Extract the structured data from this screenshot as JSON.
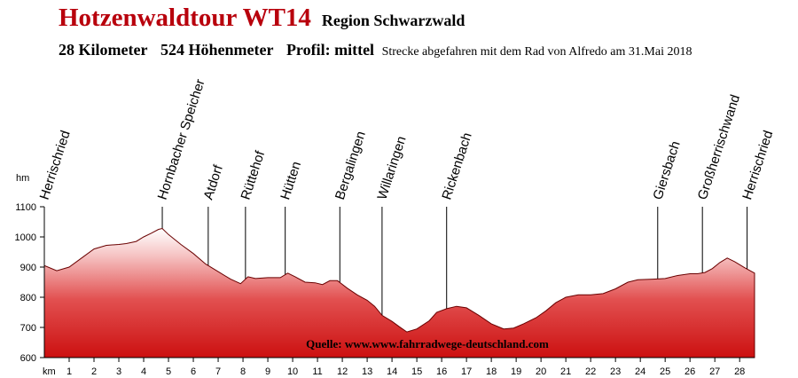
{
  "header": {
    "title": "Hotzenwaldtour WT14",
    "region": "Region Schwarzwald",
    "distance": "28 Kilometer",
    "elevation_gain": "524 Höhenmeter",
    "profile": "Profil: mittel",
    "note": "Strecke abgefahren mit dem Rad von Alfredo am 31.Mai 2018"
  },
  "chart_data": {
    "type": "area",
    "title": "Hotzenwaldtour WT14",
    "xlabel": "km",
    "ylabel": "hm",
    "xlim": [
      0,
      28.6
    ],
    "ylim": [
      600,
      1100
    ],
    "x_ticks": [
      1,
      2,
      3,
      4,
      5,
      6,
      7,
      8,
      9,
      10,
      11,
      12,
      13,
      14,
      15,
      16,
      17,
      18,
      19,
      20,
      21,
      22,
      23,
      24,
      25,
      26,
      27,
      28
    ],
    "y_ticks": [
      600,
      700,
      800,
      900,
      1000,
      1100
    ],
    "grid": false,
    "x": [
      0,
      0.5,
      1,
      1.5,
      2,
      2.5,
      3,
      3.3,
      3.7,
      4,
      4.3,
      4.6,
      4.75,
      5,
      5.5,
      6,
      6.5,
      7,
      7.5,
      7.9,
      8.2,
      8.5,
      9,
      9.5,
      9.8,
      10.1,
      10.5,
      10.9,
      11.2,
      11.5,
      11.8,
      12.2,
      12.6,
      13.0,
      13.3,
      13.6,
      14.0,
      14.3,
      14.6,
      15.0,
      15.5,
      15.8,
      16.2,
      16.6,
      17.0,
      17.5,
      18.0,
      18.5,
      18.9,
      19.3,
      19.8,
      20.2,
      20.6,
      21.0,
      21.5,
      22.0,
      22.5,
      23.0,
      23.5,
      23.9,
      24.5,
      25.0,
      25.5,
      26.0,
      26.3,
      26.6,
      26.9,
      27.2,
      27.5,
      27.8,
      28.2,
      28.6
    ],
    "y": [
      905,
      888,
      900,
      930,
      960,
      972,
      975,
      978,
      985,
      1000,
      1012,
      1025,
      1028,
      1008,
      975,
      945,
      910,
      885,
      860,
      845,
      868,
      862,
      865,
      865,
      880,
      868,
      850,
      848,
      842,
      855,
      855,
      830,
      808,
      790,
      770,
      740,
      720,
      702,
      685,
      695,
      722,
      750,
      762,
      770,
      765,
      740,
      712,
      695,
      698,
      712,
      732,
      755,
      782,
      800,
      808,
      808,
      812,
      828,
      850,
      858,
      860,
      862,
      872,
      878,
      878,
      882,
      895,
      915,
      930,
      918,
      898,
      880
    ],
    "waypoints": [
      {
        "name": "Herrischried",
        "km": 0.0
      },
      {
        "name": "Hornbacher Speicher",
        "km": 4.75
      },
      {
        "name": "Atdorf",
        "km": 6.6
      },
      {
        "name": "Rüttehof",
        "km": 8.1
      },
      {
        "name": "Hütten",
        "km": 9.7
      },
      {
        "name": "Bergalingen",
        "km": 11.9
      },
      {
        "name": "Willaringen",
        "km": 13.6
      },
      {
        "name": "Rickenbach",
        "km": 16.2
      },
      {
        "name": "Giersbach",
        "km": 24.7
      },
      {
        "name": "Großherrischwand",
        "km": 26.5
      },
      {
        "name": "Herrischried",
        "km": 28.3
      }
    ],
    "annotation": "Quelle: www.www.fahrradwege-deutschland.com"
  }
}
